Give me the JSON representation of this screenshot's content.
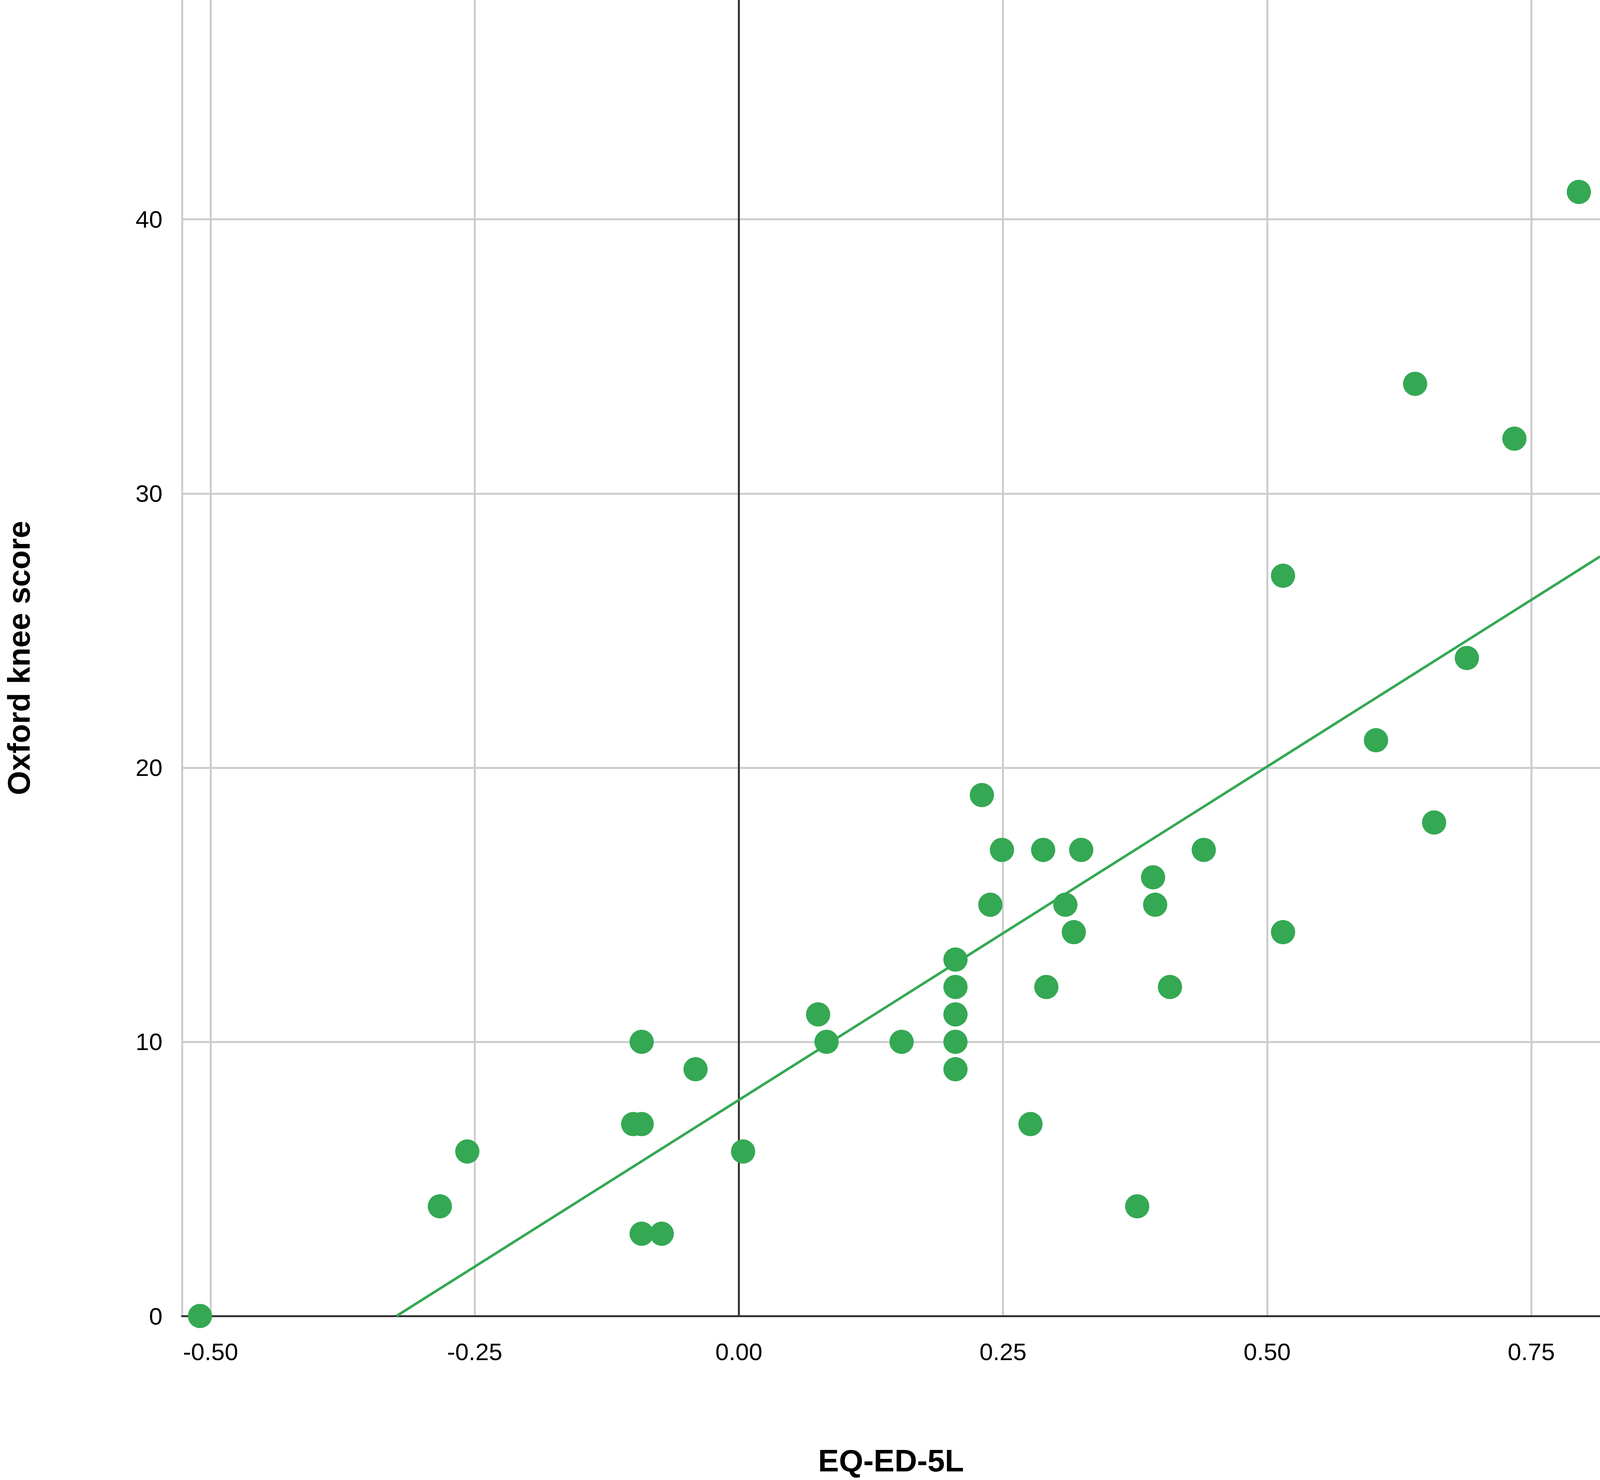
{
  "chart_data": {
    "type": "scatter",
    "x_label": "EQ-ED-5L",
    "y_label": "Oxford knee score",
    "color": "#34a853",
    "marker": "circle",
    "grid": true,
    "x": [
      -0.51,
      -0.283,
      -0.257,
      -0.1,
      -0.092,
      -0.092,
      -0.092,
      -0.073,
      -0.041,
      0.004,
      0.075,
      0.083,
      0.154,
      0.205,
      0.205,
      0.205,
      0.205,
      0.205,
      0.23,
      0.238,
      0.249,
      0.276,
      0.288,
      0.291,
      0.309,
      0.317,
      0.324,
      0.377,
      0.392,
      0.394,
      0.408,
      0.44,
      0.515,
      0.515,
      0.603,
      0.64,
      0.658,
      0.689,
      0.734,
      0.795
    ],
    "y": [
      0,
      4,
      6,
      7,
      7,
      10,
      3,
      3,
      9,
      6,
      11,
      10,
      10,
      13,
      12,
      11,
      10,
      9,
      19,
      15,
      17,
      7,
      17,
      12,
      15,
      14,
      17,
      4,
      16,
      15,
      12,
      17,
      27,
      14,
      21,
      34,
      18,
      24,
      32,
      41
    ],
    "trend_line": {
      "x": [
        -0.324,
        0.815
      ],
      "y": [
        0,
        27.7
      ]
    },
    "xlim": [
      -0.527,
      0.815
    ],
    "ylim": [
      0,
      48
    ],
    "xticks": [
      {
        "value": -0.5,
        "label": "-0.50"
      },
      {
        "value": -0.25,
        "label": "-0.25"
      },
      {
        "value": 0,
        "label": "0.00"
      },
      {
        "value": 0.25,
        "label": "0.25"
      },
      {
        "value": 0.5,
        "label": "0.50"
      },
      {
        "value": 0.75,
        "label": "0.75"
      }
    ],
    "yticks": [
      0,
      10,
      20,
      30,
      40
    ]
  }
}
